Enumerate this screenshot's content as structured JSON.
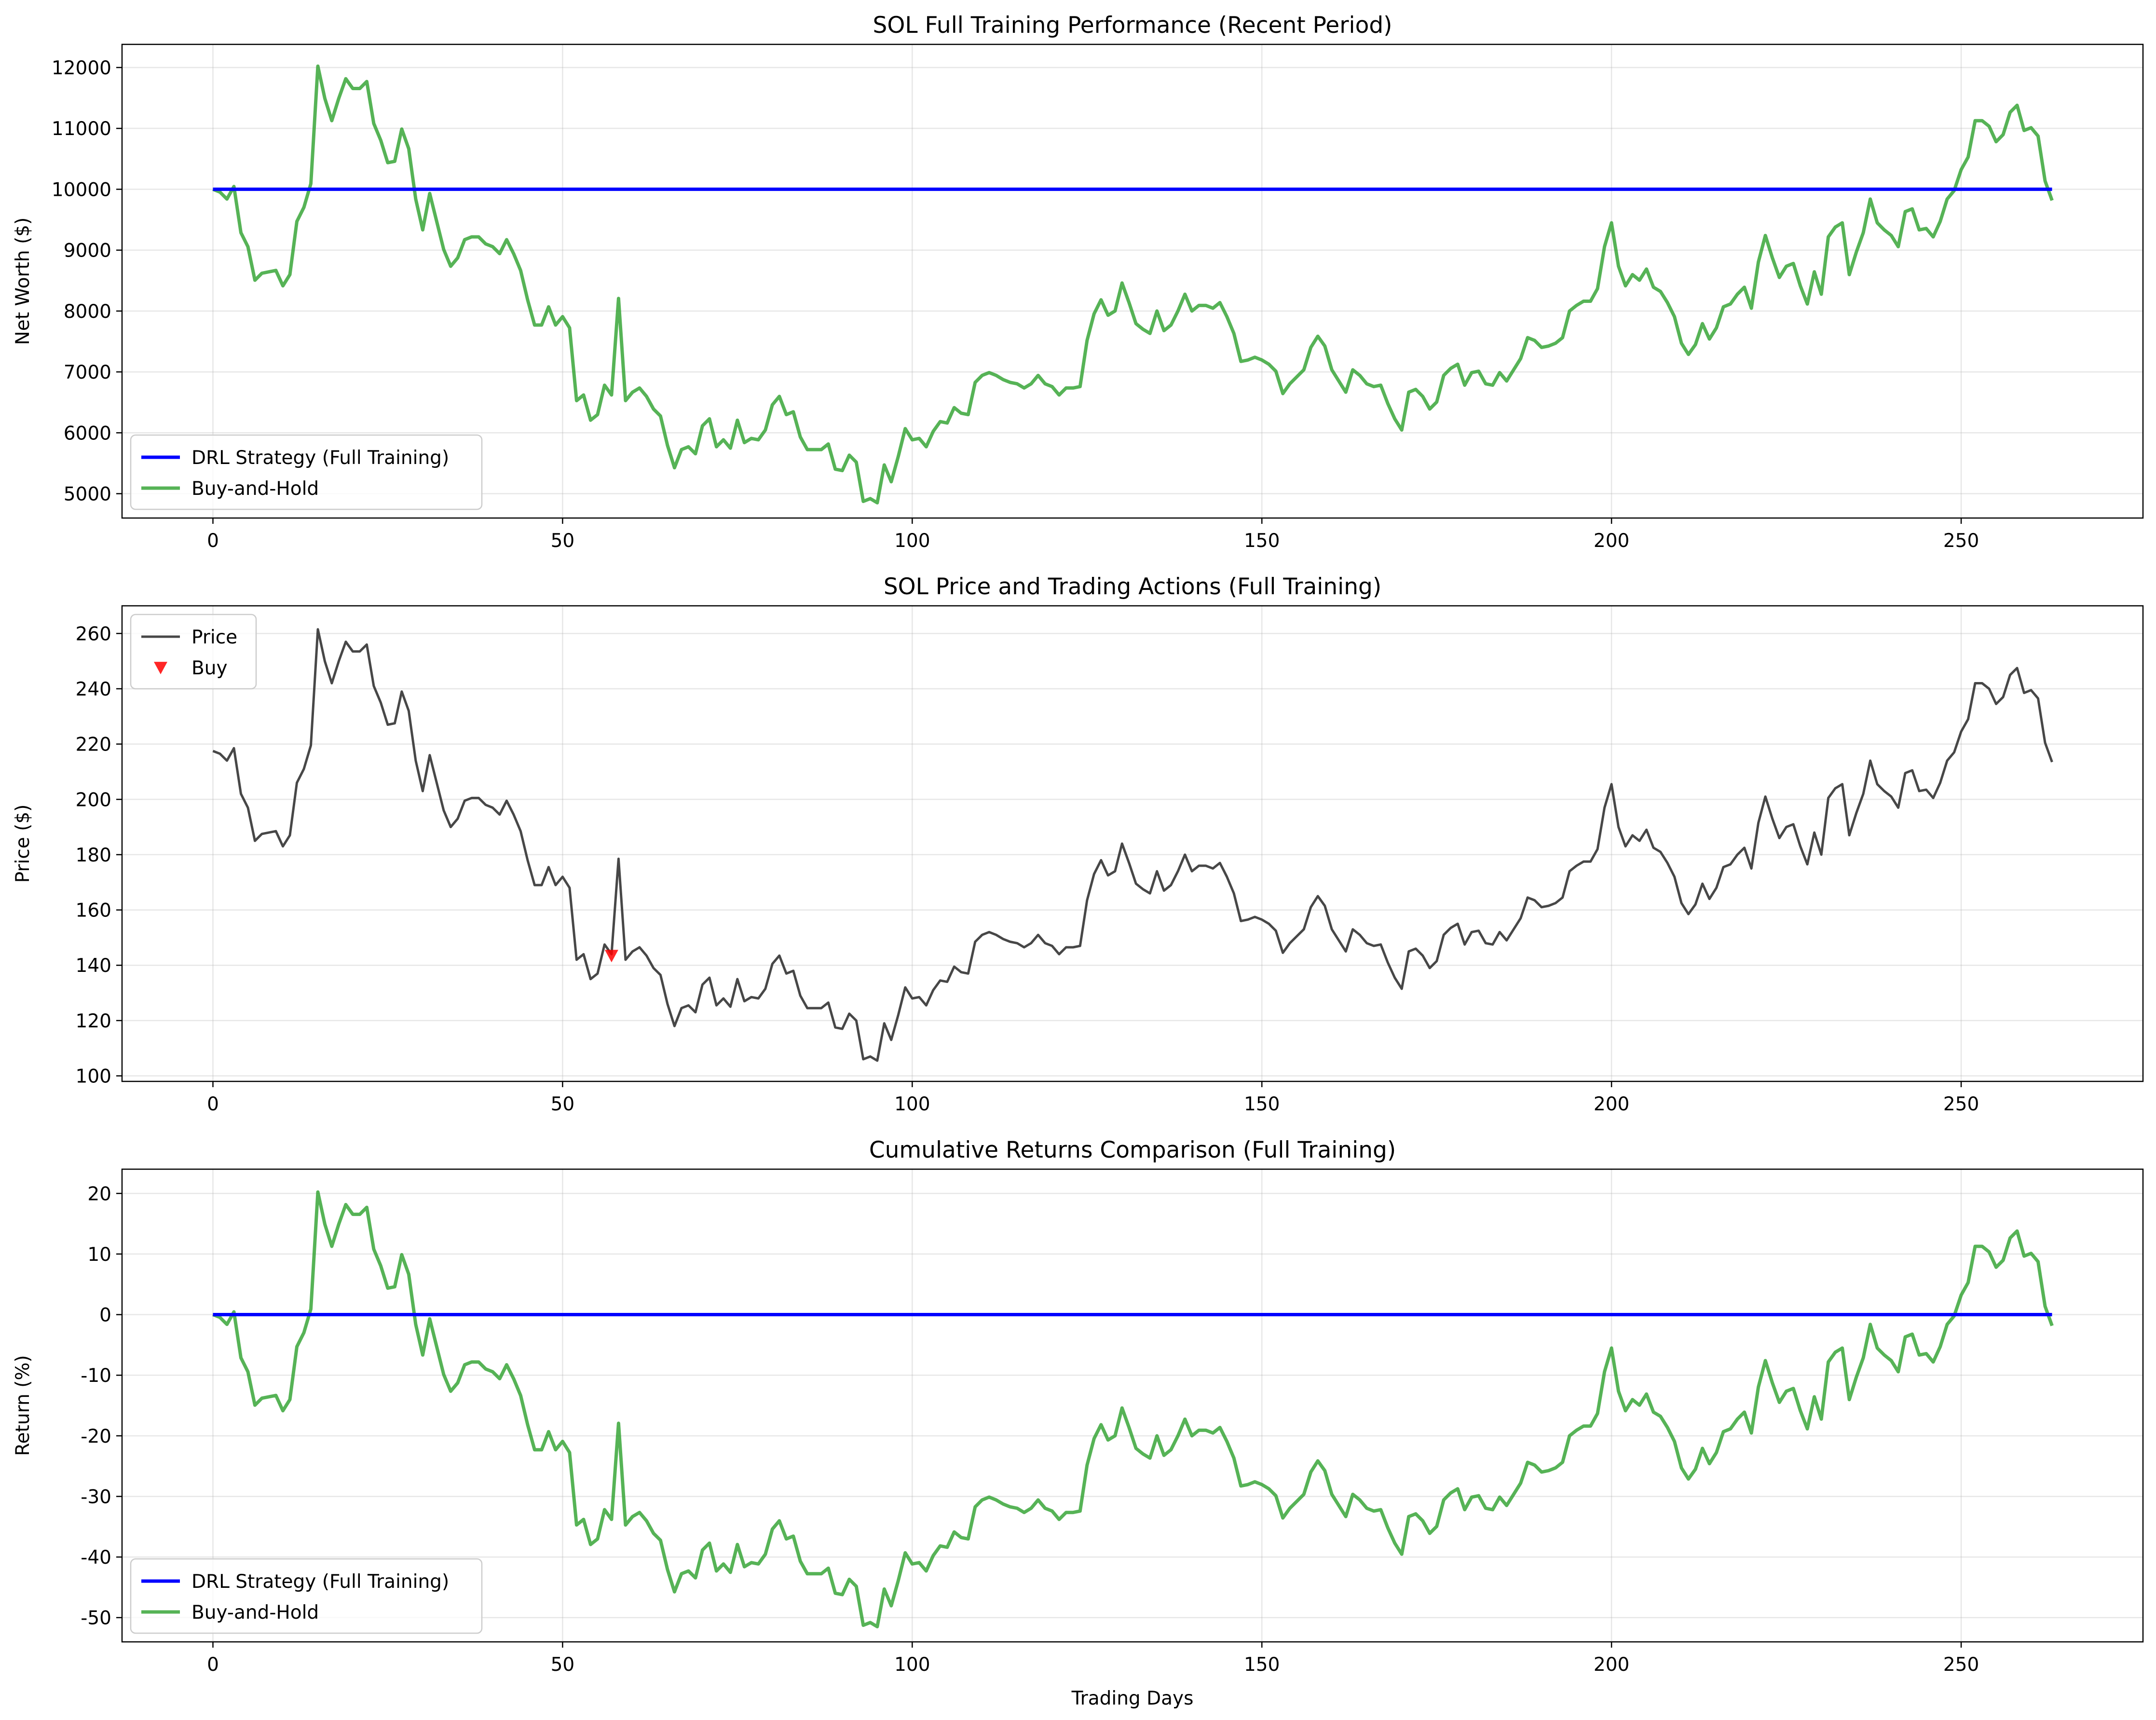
{
  "chart_data": [
    {
      "type": "line",
      "title": "SOL Full Training Performance (Recent Period)",
      "xlabel": "",
      "ylabel": "Net Worth ($)",
      "xlim": [
        -13,
        276
      ],
      "ylim": [
        4600,
        12380
      ],
      "xticks": [
        0,
        50,
        100,
        150,
        200,
        250
      ],
      "yticks": [
        5000,
        6000,
        7000,
        8000,
        9000,
        10000,
        11000,
        12000
      ],
      "grid": true,
      "legend": "lower left",
      "series": [
        {
          "name": "DRL Strategy (Full Training)",
          "color": "#0000ff",
          "x": [
            0,
            263
          ],
          "y": [
            10000,
            10000
          ]
        },
        {
          "name": "Buy-and-Hold",
          "color": "#2ca02c",
          "gen": "networth"
        }
      ]
    },
    {
      "type": "line",
      "title": "SOL Price and Trading Actions (Full Training)",
      "xlabel": "",
      "ylabel": "Price ($)",
      "xlim": [
        -13,
        276
      ],
      "ylim": [
        98,
        270
      ],
      "xticks": [
        0,
        50,
        100,
        150,
        200,
        250
      ],
      "yticks": [
        100,
        120,
        140,
        160,
        180,
        200,
        220,
        240,
        260
      ],
      "grid": true,
      "legend": "upper left",
      "series": [
        {
          "name": "Price",
          "color": "#333333",
          "gen": "price"
        },
        {
          "name": "Buy",
          "color": "#ff0000",
          "marker": "v",
          "points": [
            [
              57,
              143.5
            ]
          ]
        }
      ]
    },
    {
      "type": "line",
      "title": "Cumulative Returns Comparison (Full Training)",
      "xlabel": "Trading Days",
      "ylabel": "Return (%)",
      "xlim": [
        -13,
        276
      ],
      "ylim": [
        -54,
        24
      ],
      "xticks": [
        0,
        50,
        100,
        150,
        200,
        250
      ],
      "yticks": [
        -50,
        -40,
        -30,
        -20,
        -10,
        0,
        10,
        20
      ],
      "grid": true,
      "legend": "lower left",
      "series": [
        {
          "name": "DRL Strategy (Full Training)",
          "color": "#0000ff",
          "x": [
            0,
            263
          ],
          "y": [
            0,
            0
          ]
        },
        {
          "name": "Buy-and-Hold",
          "color": "#2ca02c",
          "gen": "returns"
        }
      ]
    }
  ],
  "price_series": [
    [
      0,
      217.5
    ],
    [
      1,
      216.5
    ],
    [
      2,
      214
    ],
    [
      3,
      218.5
    ],
    [
      4,
      202
    ],
    [
      5,
      197
    ],
    [
      6,
      185
    ],
    [
      7,
      187.5
    ],
    [
      8,
      188
    ],
    [
      9,
      188.5
    ],
    [
      10,
      183
    ],
    [
      11,
      187
    ],
    [
      12,
      206
    ],
    [
      13,
      211
    ],
    [
      14,
      219.5
    ],
    [
      15,
      261.5
    ],
    [
      16,
      250
    ],
    [
      17,
      242
    ],
    [
      18,
      250
    ],
    [
      19,
      257
    ],
    [
      20,
      253.5
    ],
    [
      21,
      253.5
    ],
    [
      22,
      256
    ],
    [
      23,
      241
    ],
    [
      24,
      235
    ],
    [
      25,
      227
    ],
    [
      26,
      227.5
    ],
    [
      27,
      239
    ],
    [
      28,
      232
    ],
    [
      29,
      214
    ],
    [
      30,
      203
    ],
    [
      31,
      216
    ],
    [
      32,
      206
    ],
    [
      33,
      196
    ],
    [
      34,
      190
    ],
    [
      35,
      193
    ],
    [
      36,
      199.5
    ],
    [
      37,
      200.5
    ],
    [
      38,
      200.5
    ],
    [
      39,
      198
    ],
    [
      40,
      197
    ],
    [
      41,
      194.5
    ],
    [
      42,
      199.5
    ],
    [
      43,
      194.5
    ],
    [
      44,
      188.5
    ],
    [
      45,
      178
    ],
    [
      46,
      169
    ],
    [
      47,
      169
    ],
    [
      48,
      175.5
    ],
    [
      49,
      169
    ],
    [
      50,
      172
    ],
    [
      51,
      168
    ],
    [
      52,
      142
    ],
    [
      53,
      144
    ],
    [
      54,
      135
    ],
    [
      55,
      137
    ],
    [
      56,
      147.5
    ],
    [
      57,
      144
    ],
    [
      58,
      178.5
    ],
    [
      59,
      142
    ],
    [
      60,
      145
    ],
    [
      61,
      146.5
    ],
    [
      62,
      143.5
    ],
    [
      63,
      139
    ],
    [
      64,
      136.5
    ],
    [
      65,
      126
    ],
    [
      66,
      118
    ],
    [
      67,
      124.5
    ],
    [
      68,
      125.5
    ],
    [
      69,
      123
    ],
    [
      70,
      133
    ],
    [
      71,
      135.5
    ],
    [
      72,
      125.5
    ],
    [
      73,
      128
    ],
    [
      74,
      125
    ],
    [
      75,
      135
    ],
    [
      76,
      127
    ],
    [
      77,
      128.5
    ],
    [
      78,
      128
    ],
    [
      79,
      131.5
    ],
    [
      80,
      140.5
    ],
    [
      81,
      143.5
    ],
    [
      82,
      137
    ],
    [
      83,
      138
    ],
    [
      84,
      129
    ],
    [
      85,
      124.5
    ],
    [
      86,
      124.5
    ],
    [
      87,
      124.5
    ],
    [
      88,
      126.5
    ],
    [
      89,
      117.5
    ],
    [
      90,
      117
    ],
    [
      91,
      122.5
    ],
    [
      92,
      120
    ],
    [
      93,
      106
    ],
    [
      94,
      107
    ],
    [
      95,
      105.5
    ],
    [
      96,
      119
    ],
    [
      97,
      113
    ],
    [
      98,
      122
    ],
    [
      99,
      132
    ],
    [
      100,
      128
    ],
    [
      101,
      128.5
    ],
    [
      102,
      125.5
    ],
    [
      103,
      131
    ],
    [
      104,
      134.5
    ],
    [
      105,
      134
    ],
    [
      106,
      139.5
    ],
    [
      107,
      137.5
    ],
    [
      108,
      137
    ],
    [
      109,
      148.5
    ],
    [
      110,
      151
    ],
    [
      111,
      152
    ],
    [
      112,
      151
    ],
    [
      113,
      149.5
    ],
    [
      114,
      148.5
    ],
    [
      115,
      148
    ],
    [
      116,
      146.5
    ],
    [
      117,
      148
    ],
    [
      118,
      151
    ],
    [
      119,
      148
    ],
    [
      120,
      147
    ],
    [
      121,
      144
    ],
    [
      122,
      146.5
    ],
    [
      123,
      146.5
    ],
    [
      124,
      147
    ],
    [
      125,
      163.5
    ],
    [
      126,
      173
    ],
    [
      127,
      178
    ],
    [
      128,
      172.5
    ],
    [
      129,
      174
    ],
    [
      130,
      184
    ],
    [
      131,
      177
    ],
    [
      132,
      169.5
    ],
    [
      133,
      167.5
    ],
    [
      134,
      166
    ],
    [
      135,
      174
    ],
    [
      136,
      167
    ],
    [
      137,
      169
    ],
    [
      138,
      174
    ],
    [
      139,
      180
    ],
    [
      140,
      174
    ],
    [
      141,
      176
    ],
    [
      142,
      176
    ],
    [
      143,
      175
    ],
    [
      144,
      177
    ],
    [
      145,
      172
    ],
    [
      146,
      166
    ],
    [
      147,
      156
    ],
    [
      148,
      156.5
    ],
    [
      149,
      157.5
    ],
    [
      150,
      156.5
    ],
    [
      151,
      155
    ],
    [
      152,
      152.5
    ],
    [
      153,
      144.5
    ],
    [
      154,
      148
    ],
    [
      155,
      150.5
    ],
    [
      156,
      153
    ],
    [
      157,
      161
    ],
    [
      158,
      165
    ],
    [
      159,
      161.5
    ],
    [
      160,
      153
    ],
    [
      161,
      149
    ],
    [
      162,
      145
    ],
    [
      163,
      153
    ],
    [
      164,
      151
    ],
    [
      165,
      148
    ],
    [
      166,
      147
    ],
    [
      167,
      147.5
    ],
    [
      168,
      141
    ],
    [
      169,
      135.5
    ],
    [
      170,
      131.5
    ],
    [
      171,
      145
    ],
    [
      172,
      146
    ],
    [
      173,
      143.5
    ],
    [
      174,
      139
    ],
    [
      175,
      141.5
    ],
    [
      176,
      151
    ],
    [
      177,
      153.5
    ],
    [
      178,
      155
    ],
    [
      179,
      147.5
    ],
    [
      180,
      152
    ],
    [
      181,
      152.5
    ],
    [
      182,
      148
    ],
    [
      183,
      147.5
    ],
    [
      184,
      152
    ],
    [
      185,
      149
    ],
    [
      186,
      153
    ],
    [
      187,
      157
    ],
    [
      188,
      164.5
    ],
    [
      189,
      163.5
    ],
    [
      190,
      161
    ],
    [
      191,
      161.5
    ],
    [
      192,
      162.5
    ],
    [
      193,
      164.5
    ],
    [
      194,
      174
    ],
    [
      195,
      176
    ],
    [
      196,
      177.5
    ],
    [
      197,
      177.5
    ],
    [
      198,
      182
    ],
    [
      199,
      197
    ],
    [
      200,
      205.5
    ],
    [
      201,
      190
    ],
    [
      202,
      183
    ],
    [
      203,
      187
    ],
    [
      204,
      185
    ],
    [
      205,
      189
    ],
    [
      206,
      182.5
    ],
    [
      207,
      181
    ],
    [
      208,
      177
    ],
    [
      209,
      172
    ],
    [
      210,
      162.5
    ],
    [
      211,
      158.5
    ],
    [
      212,
      162
    ],
    [
      213,
      169.5
    ],
    [
      214,
      164
    ],
    [
      215,
      168
    ],
    [
      216,
      175.5
    ],
    [
      217,
      176.5
    ],
    [
      218,
      180
    ],
    [
      219,
      182.5
    ],
    [
      220,
      175
    ],
    [
      221,
      191.5
    ],
    [
      222,
      201
    ],
    [
      223,
      193
    ],
    [
      224,
      186
    ],
    [
      225,
      190
    ],
    [
      226,
      191
    ],
    [
      227,
      183
    ],
    [
      228,
      176.5
    ],
    [
      229,
      188
    ],
    [
      230,
      180
    ],
    [
      231,
      200.5
    ],
    [
      232,
      204
    ],
    [
      233,
      205.5
    ],
    [
      234,
      187
    ],
    [
      235,
      195
    ],
    [
      236,
      202
    ],
    [
      237,
      214
    ],
    [
      238,
      205.5
    ],
    [
      239,
      203
    ],
    [
      240,
      201
    ],
    [
      241,
      197
    ],
    [
      242,
      209.5
    ],
    [
      243,
      210.5
    ],
    [
      244,
      203
    ],
    [
      245,
      203.5
    ],
    [
      246,
      200.5
    ],
    [
      247,
      206
    ],
    [
      248,
      214
    ],
    [
      249,
      217
    ],
    [
      250,
      224.5
    ],
    [
      251,
      229
    ],
    [
      252,
      242
    ],
    [
      253,
      242
    ],
    [
      254,
      240
    ],
    [
      255,
      234.5
    ],
    [
      256,
      237
    ],
    [
      257,
      245
    ],
    [
      258,
      247.5
    ],
    [
      259,
      238.5
    ],
    [
      260,
      239.5
    ],
    [
      261,
      236.5
    ],
    [
      262,
      220.5
    ],
    [
      263,
      213.5
    ]
  ],
  "buy_and_hold_base_price": 217.5,
  "initial_net_worth": 10000
}
